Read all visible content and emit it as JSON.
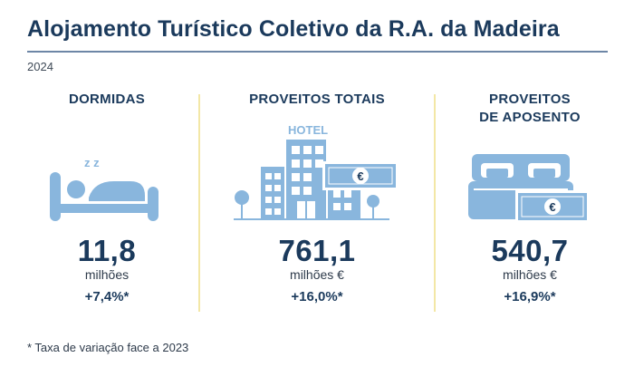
{
  "title": "Alojamento Turístico Coletivo da R.A. da Madeira",
  "year": "2024",
  "colors": {
    "accent": "#1b3a5c",
    "icon": "#89b6dd",
    "divider": "#f3e7a6",
    "rule": "#6d86a6"
  },
  "panels": [
    {
      "heading": "DORMIDAS",
      "icon": "sleeping-person-icon",
      "zzz": "z z",
      "value": "11,8",
      "unit": "milhões",
      "change": "+7,4%*"
    },
    {
      "heading": "PROVEITOS TOTAIS",
      "icon": "hotel-building-icon",
      "sign": "HOTEL",
      "value": "761,1",
      "unit": "milhões €",
      "change": "+16,0%*"
    },
    {
      "heading_line1": "PROVEITOS",
      "heading_line2": "DE APOSENTO",
      "icon": "bed-icon",
      "value": "540,7",
      "unit": "milhões €",
      "change": "+16,9%*"
    }
  ],
  "currency_symbol": "€",
  "footnote": "* Taxa de variação face a 2023"
}
